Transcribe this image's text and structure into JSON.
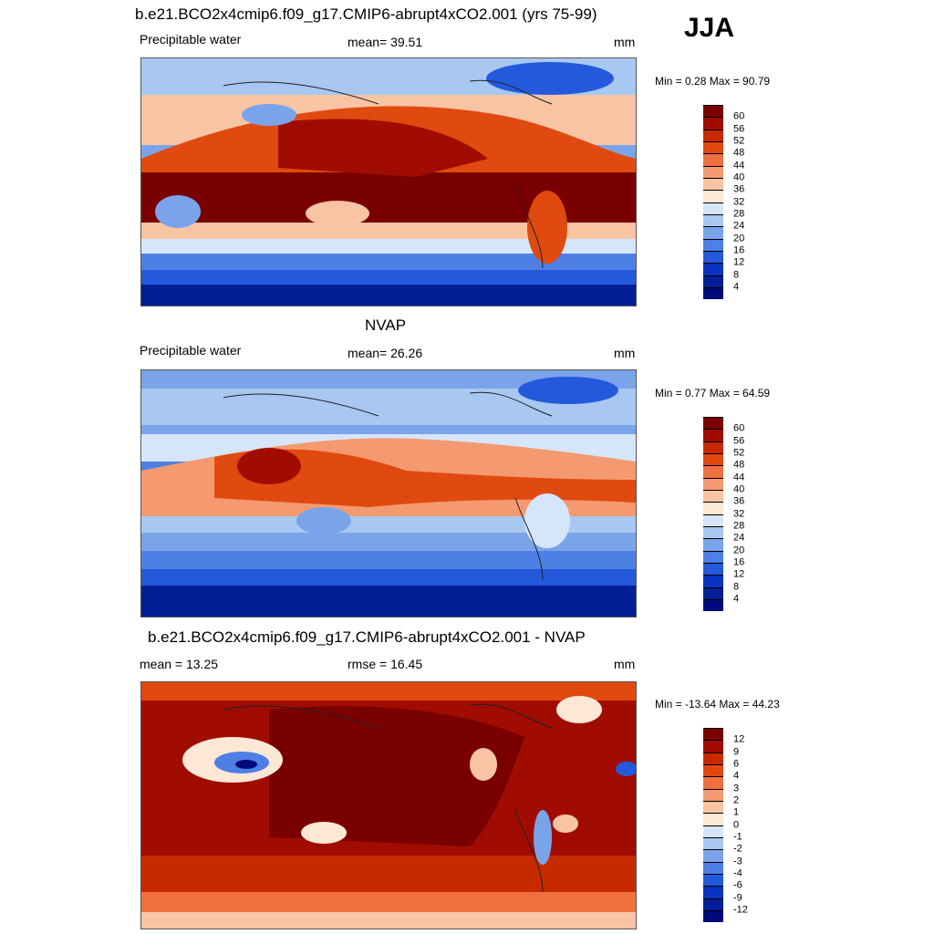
{
  "season": "JJA",
  "panels": [
    {
      "title": "b.e21.BCO2x4cmip6.f09_g17.CMIP6-abrupt4xCO2.001 (yrs 75-99)",
      "left": "Precipitable water",
      "center": "mean=  39.51",
      "units": "mm",
      "minmax": "Min =   0.28 Max =  90.79",
      "cbar_labels": [
        "60",
        "56",
        "52",
        "48",
        "44",
        "40",
        "36",
        "32",
        "28",
        "24",
        "20",
        "16",
        "12",
        "8",
        "4"
      ]
    },
    {
      "title": "NVAP",
      "left": "Precipitable water",
      "center": "mean=  26.26",
      "units": "mm",
      "minmax": "Min =   0.77 Max =  64.59",
      "cbar_labels": [
        "60",
        "56",
        "52",
        "48",
        "44",
        "40",
        "36",
        "32",
        "28",
        "24",
        "20",
        "16",
        "12",
        "8",
        "4"
      ]
    },
    {
      "title": "b.e21.BCO2x4cmip6.f09_g17.CMIP6-abrupt4xCO2.001 - NVAP",
      "left": "mean =  13.25",
      "center": "rmse =  16.45",
      "units": "mm",
      "minmax": "Min = -13.64 Max =  44.23",
      "cbar_labels": [
        "12",
        "9",
        "6",
        "4",
        "3",
        "2",
        "1",
        "0",
        "-1",
        "-2",
        "-3",
        "-4",
        "-6",
        "-9",
        "-12"
      ]
    }
  ],
  "colors": {
    "seq": [
      "#7a0000",
      "#a00d00",
      "#c82a00",
      "#e04a10",
      "#f07040",
      "#f59a70",
      "#f8c4a4",
      "#fde8d6",
      "#d6e6fa",
      "#a8c8f2",
      "#7aa4ea",
      "#4d7fe4",
      "#2459dc",
      "#0a34c0",
      "#041e96",
      "#000a78"
    ]
  }
}
